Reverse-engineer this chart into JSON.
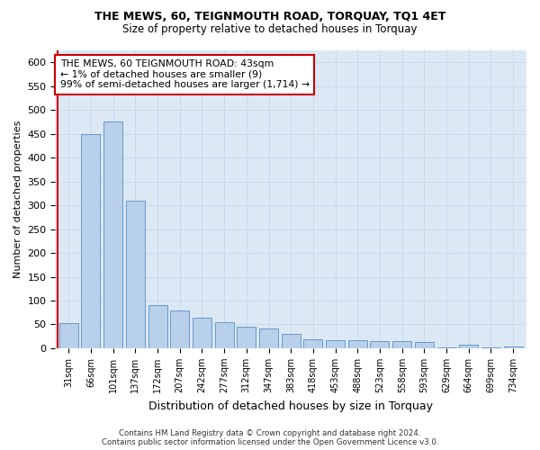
{
  "title": "THE MEWS, 60, TEIGNMOUTH ROAD, TORQUAY, TQ1 4ET",
  "subtitle": "Size of property relative to detached houses in Torquay",
  "xlabel": "Distribution of detached houses by size in Torquay",
  "ylabel": "Number of detached properties",
  "bar_color": "#b8d0ea",
  "bar_edge_color": "#6699cc",
  "bg_color": "#dde8f5",
  "categories": [
    "31sqm",
    "66sqm",
    "101sqm",
    "137sqm",
    "172sqm",
    "207sqm",
    "242sqm",
    "277sqm",
    "312sqm",
    "347sqm",
    "383sqm",
    "418sqm",
    "453sqm",
    "488sqm",
    "523sqm",
    "558sqm",
    "593sqm",
    "629sqm",
    "664sqm",
    "699sqm",
    "734sqm"
  ],
  "values": [
    52,
    450,
    475,
    310,
    90,
    80,
    65,
    55,
    45,
    42,
    30,
    18,
    17,
    17,
    15,
    15,
    14,
    1,
    8,
    1,
    3
  ],
  "ylim": [
    0,
    625
  ],
  "yticks": [
    0,
    50,
    100,
    150,
    200,
    250,
    300,
    350,
    400,
    450,
    500,
    550,
    600
  ],
  "annotation_text": "THE MEWS, 60 TEIGNMOUTH ROAD: 43sqm\n← 1% of detached houses are smaller (9)\n99% of semi-detached houses are larger (1,714) →",
  "footnote": "Contains HM Land Registry data © Crown copyright and database right 2024.\nContains public sector information licensed under the Open Government Licence v3.0.",
  "grid_color": "#c5d5e8",
  "red_line_color": "#cc0000",
  "red_line_x": -0.5
}
